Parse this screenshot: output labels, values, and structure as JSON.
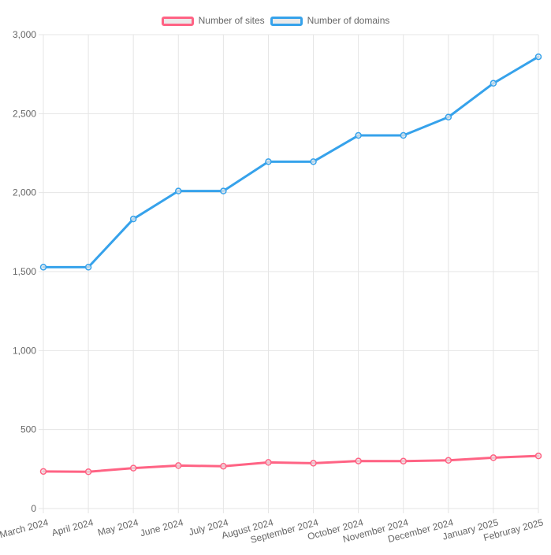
{
  "chart_data": {
    "type": "line",
    "title": "",
    "xlabel": "",
    "ylabel": "",
    "categories": [
      "March 2024",
      "April 2024",
      "May 2024",
      "June 2024",
      "July 2024",
      "August 2024",
      "September 2024",
      "October 2024",
      "November 2024",
      "December 2024",
      "January 2025",
      "Februray 2025"
    ],
    "series": [
      {
        "name": "Number of sites",
        "color": "#ff6384",
        "values": [
          235,
          233,
          256,
          272,
          268,
          292,
          287,
          301,
          300,
          305,
          322,
          333
        ]
      },
      {
        "name": "Number of domains",
        "color": "#36a2eb",
        "values": [
          1528,
          1528,
          1833,
          2010,
          2010,
          2196,
          2196,
          2362,
          2362,
          2478,
          2692,
          2860
        ]
      }
    ],
    "ylim": [
      0,
      3000
    ],
    "y_ticks": [
      0,
      500,
      1000,
      1500,
      2000,
      2500,
      3000
    ],
    "y_tick_labels": [
      "0",
      "500",
      "1,000",
      "1,500",
      "2,000",
      "2,500",
      "3,000"
    ],
    "grid": true,
    "legend_position": "top",
    "x_label_rotation_deg": -15,
    "colors": {
      "grid": "#e5e5e5",
      "tick_text": "#666666",
      "marker_fill": "rgba(234,234,234,0.7)",
      "swatch_fill": "#eaeaea",
      "background": "#ffffff"
    }
  }
}
